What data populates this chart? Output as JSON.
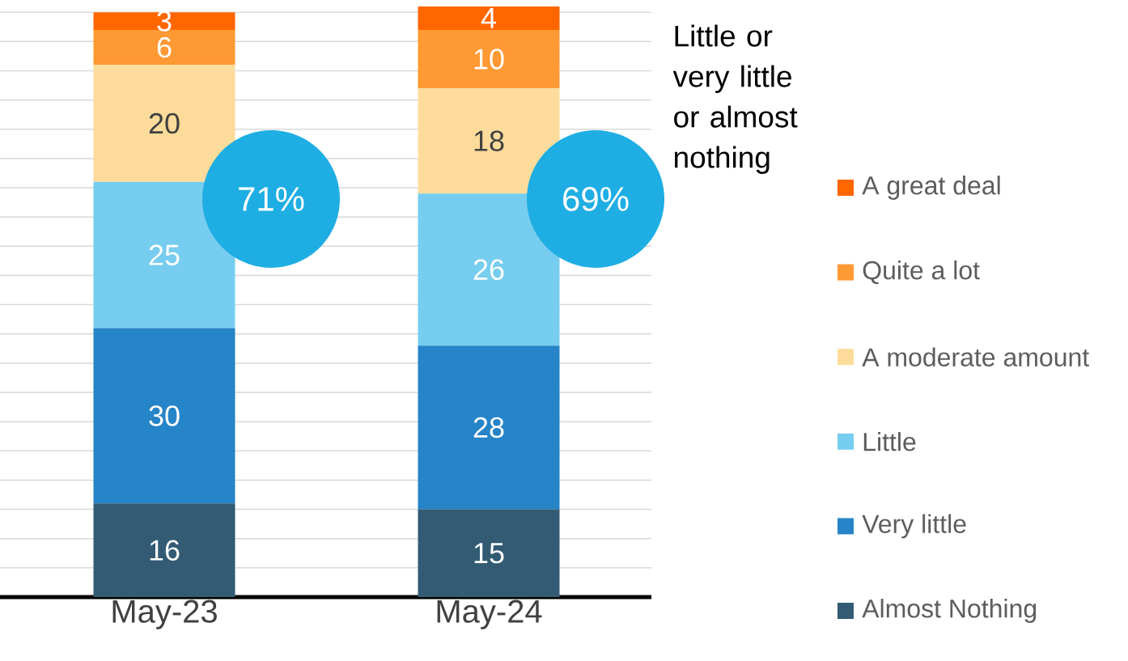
{
  "chart_data": {
    "type": "bar",
    "stacked": true,
    "categories": [
      "May-23",
      "May-24"
    ],
    "series": [
      {
        "name": "Almost Nothing",
        "color": "#335b74",
        "values": [
          16,
          15
        ]
      },
      {
        "name": "Very little",
        "color": "#2684c8",
        "values": [
          30,
          28
        ]
      },
      {
        "name": "Little",
        "color": "#77cdef",
        "values": [
          25,
          26
        ]
      },
      {
        "name": "A moderate amount",
        "color": "#fddc9b",
        "values": [
          20,
          18
        ]
      },
      {
        "name": "Quite a lot",
        "color": "#ff9933",
        "values": [
          6,
          10
        ]
      },
      {
        "name": "A great deal",
        "color": "#ff6600",
        "values": [
          3,
          4
        ]
      }
    ],
    "grid": "y",
    "tick_labels": "x",
    "data_labels": true,
    "legend": "right",
    "annotations": [
      "71%",
      "69%",
      "Little or very little or almost nothing"
    ]
  }
}
